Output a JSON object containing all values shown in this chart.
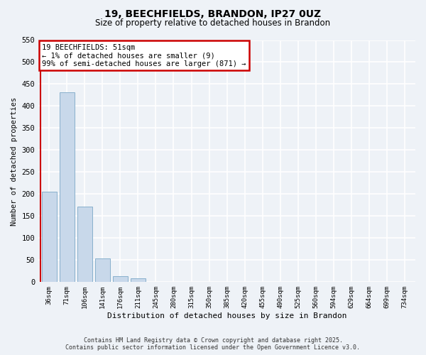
{
  "title_line1": "19, BEECHFIELDS, BRANDON, IP27 0UZ",
  "title_line2": "Size of property relative to detached houses in Brandon",
  "xlabel": "Distribution of detached houses by size in Brandon",
  "ylabel": "Number of detached properties",
  "bin_labels": [
    "36sqm",
    "71sqm",
    "106sqm",
    "141sqm",
    "176sqm",
    "211sqm",
    "245sqm",
    "280sqm",
    "315sqm",
    "350sqm",
    "385sqm",
    "420sqm",
    "455sqm",
    "490sqm",
    "525sqm",
    "560sqm",
    "594sqm",
    "629sqm",
    "664sqm",
    "699sqm",
    "734sqm"
  ],
  "bar_values": [
    205,
    432,
    172,
    53,
    13,
    8,
    0,
    0,
    0,
    0,
    0,
    0,
    0,
    0,
    0,
    0,
    0,
    0,
    0,
    0,
    1
  ],
  "bar_color": "#c8d8ea",
  "bar_edge_color": "#88b0cc",
  "ylim": [
    0,
    550
  ],
  "yticks": [
    0,
    50,
    100,
    150,
    200,
    250,
    300,
    350,
    400,
    450,
    500,
    550
  ],
  "annotation_box_text": "19 BEECHFIELDS: 51sqm\n← 1% of detached houses are smaller (9)\n99% of semi-detached houses are larger (871) →",
  "annotation_box_color": "#ffffff",
  "annotation_box_edge_color": "#cc0000",
  "property_line_color": "#cc0000",
  "footer_line1": "Contains HM Land Registry data © Crown copyright and database right 2025.",
  "footer_line2": "Contains public sector information licensed under the Open Government Licence v3.0.",
  "background_color": "#eef2f7",
  "grid_color": "#ffffff",
  "fig_width": 6.0,
  "fig_height": 5.0,
  "dpi": 100
}
